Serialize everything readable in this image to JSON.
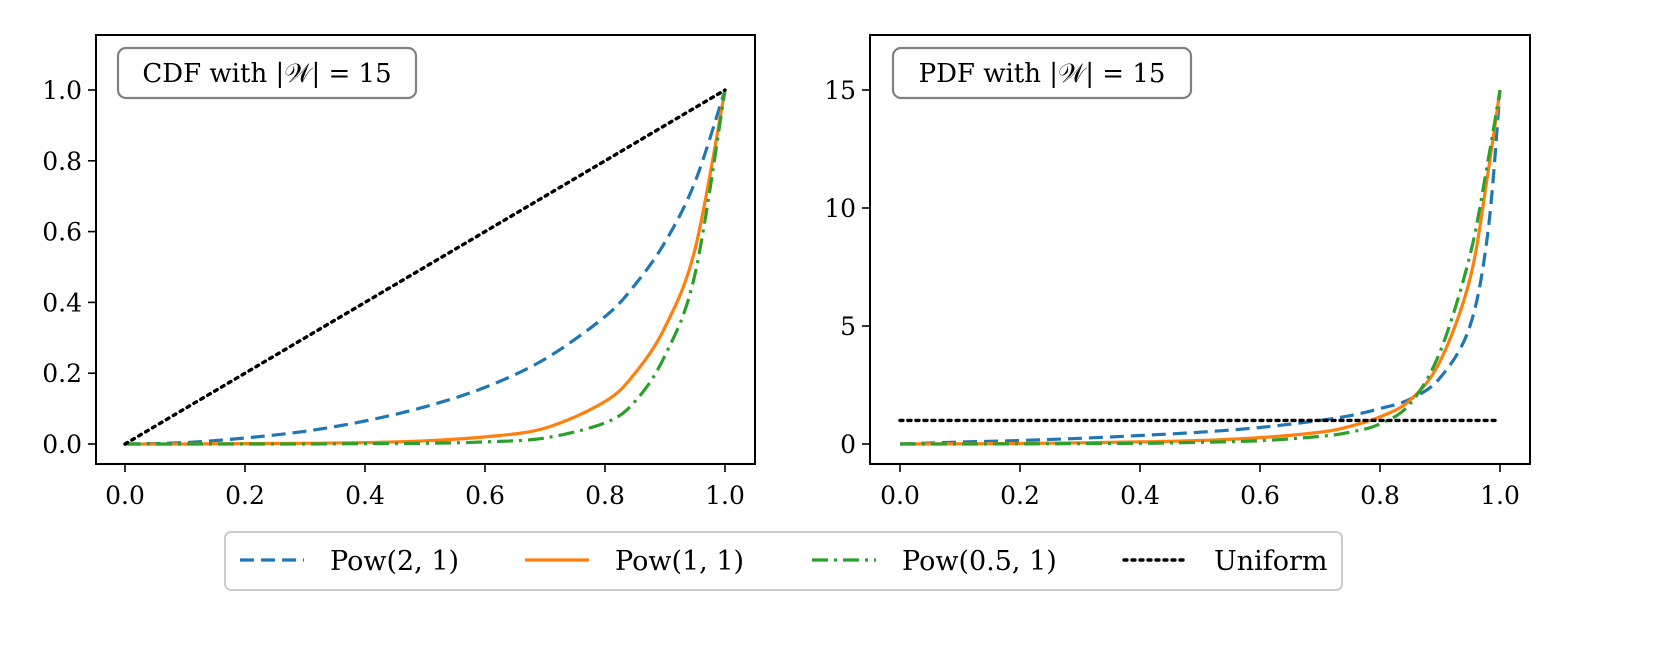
{
  "chart_data": [
    {
      "type": "line",
      "annotation": "CDF with |𝒲| = 15",
      "xlim": [
        0,
        1
      ],
      "ylim": [
        0,
        1
      ],
      "x_ticks": [
        "0.0",
        "0.2",
        "0.4",
        "0.6",
        "0.8",
        "1.0"
      ],
      "y_ticks": [
        "0.0",
        "0.2",
        "0.4",
        "0.6",
        "0.8",
        "1.0"
      ],
      "x": [
        0.0,
        0.1,
        0.2,
        0.3,
        0.4,
        0.5,
        0.6,
        0.7,
        0.8,
        0.85,
        0.9,
        0.95,
        1.0
      ],
      "series": [
        {
          "name": "Pow(2, 1)",
          "values": [
            0.0,
            0.004,
            0.017,
            0.036,
            0.065,
            0.105,
            0.16,
            0.24,
            0.36,
            0.45,
            0.57,
            0.74,
            1.0
          ]
        },
        {
          "name": "Pow(1, 1)",
          "values": [
            0.0,
            0.0,
            0.001,
            0.002,
            0.004,
            0.009,
            0.02,
            0.045,
            0.12,
            0.2,
            0.33,
            0.55,
            1.0
          ]
        },
        {
          "name": "Pow(0.5, 1)",
          "values": [
            0.0,
            0.0,
            0.0,
            0.0,
            0.001,
            0.002,
            0.006,
            0.017,
            0.06,
            0.12,
            0.25,
            0.48,
            1.0
          ]
        },
        {
          "name": "Uniform",
          "values": [
            0.0,
            0.1,
            0.2,
            0.3,
            0.4,
            0.5,
            0.6,
            0.7,
            0.8,
            0.85,
            0.9,
            0.95,
            1.0
          ]
        }
      ]
    },
    {
      "type": "line",
      "annotation": "PDF with |𝒲| = 15",
      "xlim": [
        0,
        1
      ],
      "ylim": [
        0,
        15
      ],
      "x_ticks": [
        "0.0",
        "0.2",
        "0.4",
        "0.6",
        "0.8",
        "1.0"
      ],
      "y_ticks": [
        "0",
        "5",
        "10",
        "15"
      ],
      "x": [
        0.0,
        0.1,
        0.2,
        0.3,
        0.4,
        0.5,
        0.6,
        0.7,
        0.75,
        0.8,
        0.85,
        0.9,
        0.95,
        0.98,
        1.0
      ],
      "series": [
        {
          "name": "Pow(2, 1)",
          "values": [
            0.0,
            0.08,
            0.15,
            0.24,
            0.36,
            0.5,
            0.7,
            1.0,
            1.2,
            1.5,
            1.9,
            2.8,
            5.0,
            9.0,
            15.0
          ]
        },
        {
          "name": "Pow(1, 1)",
          "values": [
            0.0,
            0.01,
            0.02,
            0.05,
            0.09,
            0.15,
            0.27,
            0.5,
            0.75,
            1.15,
            1.85,
            3.5,
            7.0,
            11.5,
            15.0
          ]
        },
        {
          "name": "Pow(0.5, 1)",
          "values": [
            0.0,
            0.0,
            0.005,
            0.015,
            0.03,
            0.07,
            0.14,
            0.32,
            0.5,
            0.85,
            1.7,
            3.9,
            8.0,
            12.0,
            15.0
          ]
        },
        {
          "name": "Uniform",
          "values": [
            1,
            1,
            1,
            1,
            1,
            1,
            1,
            1,
            1,
            1,
            1,
            1,
            1,
            1,
            1
          ]
        }
      ]
    }
  ],
  "legend": {
    "placement": "bottom-center",
    "entries": [
      "Pow(2, 1)",
      "Pow(1, 1)",
      "Pow(0.5, 1)",
      "Uniform"
    ]
  },
  "colors": {
    "Pow(2, 1)": "#1f77b4",
    "Pow(1, 1)": "#ff7f0e",
    "Pow(0.5, 1)": "#2ca02c",
    "Uniform": "#000000"
  },
  "line_styles": {
    "Pow(2, 1)": "dashed",
    "Pow(1, 1)": "solid",
    "Pow(0.5, 1)": "dash-dot",
    "Uniform": "dotted"
  }
}
